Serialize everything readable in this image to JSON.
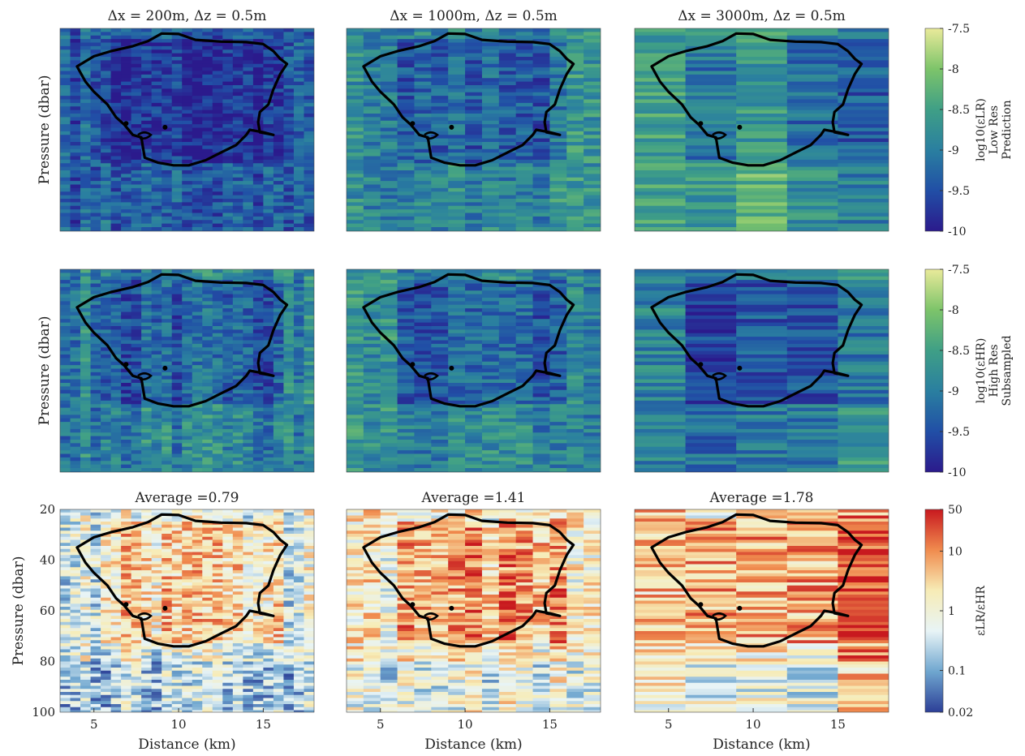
{
  "chart_data": {
    "type": "heatmap",
    "x": {
      "label": "Distance (km)",
      "range": [
        3,
        18
      ],
      "ticks": [
        5,
        10,
        15
      ]
    },
    "y": {
      "label": "Pressure (dbar)",
      "range": [
        20,
        100
      ],
      "ticks": [
        20,
        40,
        60,
        80,
        100
      ],
      "reversed": true
    },
    "column_titles": [
      "Δx = 200m, Δz = 0.5m",
      "Δx = 1000m, Δz = 0.5m",
      "Δx = 3000m, Δz = 0.5m"
    ],
    "rows": [
      {
        "name": "low_res_prediction",
        "colorbar": {
          "label_lines": [
            "log10(εLR)",
            "Low Res",
            "Prediction"
          ],
          "ticks": [
            "-7.5",
            "-8",
            "-8.5",
            "-9",
            "-9.5",
            "-10"
          ],
          "range": [
            -10,
            -7.5
          ]
        }
      },
      {
        "name": "high_res_subsampled",
        "colorbar": {
          "label_lines": [
            "log10(εHR)",
            "High Res",
            "Subsampled"
          ],
          "ticks": [
            "-7.5",
            "-8",
            "-8.5",
            "-9",
            "-9.5",
            "-10"
          ],
          "range": [
            -10,
            -7.5
          ]
        }
      },
      {
        "name": "ratio",
        "panel_titles": [
          "Average =0.79",
          "Average =1.41",
          "Average =1.78"
        ],
        "averages": [
          0.79,
          1.41,
          1.78
        ],
        "colorbar": {
          "label_lines": [
            "εLR/εHR"
          ],
          "ticks": [
            "50",
            "10",
            "1",
            "0.1",
            "0.02"
          ],
          "scale": "log",
          "range": [
            0.02,
            50
          ]
        }
      }
    ],
    "contour": "closed eddy boundary drawn in black on every panel",
    "colormap_rows_1_2": [
      "#2b1a8c",
      "#214fa6",
      "#2a7fa0",
      "#3f9f86",
      "#7dc46a",
      "#e9ea9a"
    ],
    "colormap_row_3": [
      "#2c3f97",
      "#6fa6cf",
      "#e8f4f6",
      "#f7ecb6",
      "#f08b4e",
      "#c8191f"
    ]
  }
}
